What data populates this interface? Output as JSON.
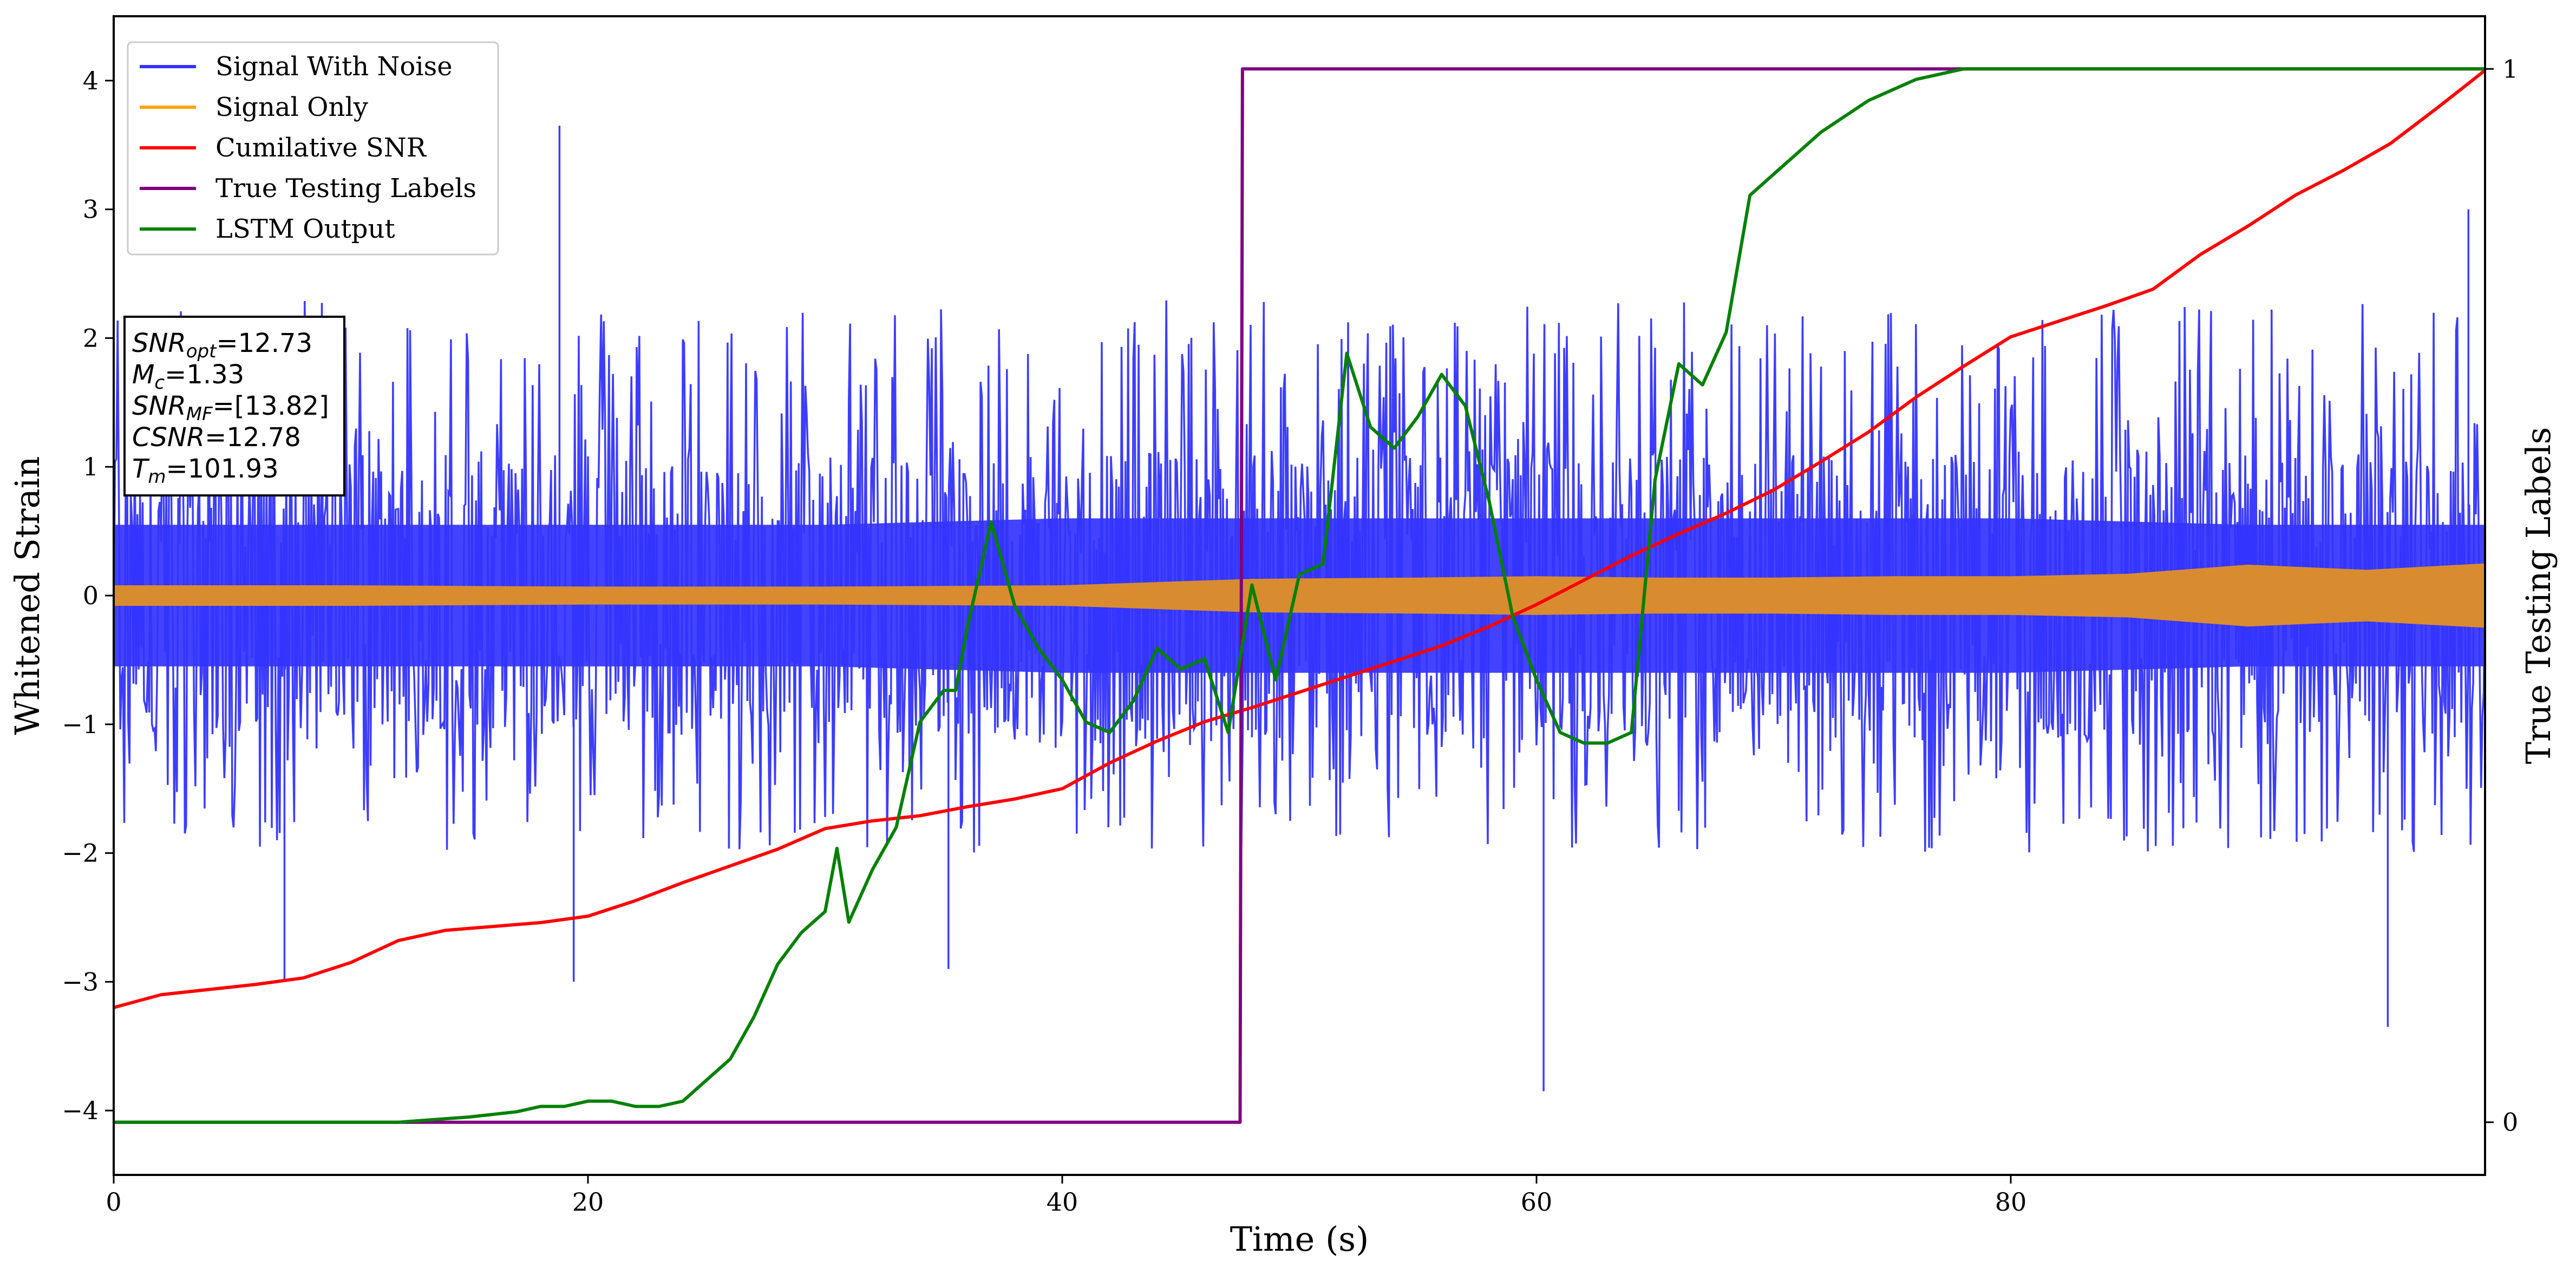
{
  "chart_data": {
    "type": "line",
    "xlabel": "Time (s)",
    "ylabel": "Whitened Strain",
    "y2label": "True Testing Labels",
    "xlim": [
      0,
      100
    ],
    "ylim": [
      -4.5,
      4.5
    ],
    "y2lim": [
      -0.05,
      1.05
    ],
    "xticks": [
      0,
      20,
      40,
      60,
      80
    ],
    "yticks": [
      -4,
      -3,
      -2,
      -1,
      0,
      1,
      2,
      3,
      4
    ],
    "y2ticks": [
      0,
      1
    ],
    "legend_position": "top-left",
    "legend": [
      {
        "label": "Signal With Noise",
        "color": "#3333ff"
      },
      {
        "label": "Signal Only",
        "color": "#ffa500"
      },
      {
        "label": "Cumilative SNR",
        "color": "#ff0000"
      },
      {
        "label": "True Testing Labels",
        "color": "#800080"
      },
      {
        "label": "LSTM Output",
        "color": "#008000"
      }
    ],
    "annotation": [
      {
        "base": "SNR",
        "sub": "opt",
        "rest": "=12.73"
      },
      {
        "base": "M",
        "sub": "c",
        "rest": "=1.33"
      },
      {
        "base": "SNR",
        "sub": "MF",
        "rest": "=[13.82]"
      },
      {
        "base": "CSNR",
        "sub": "",
        "rest": "=12.78"
      },
      {
        "base": "T",
        "sub": "m",
        "rest": "=101.93"
      }
    ],
    "series": [
      {
        "name": "Signal With Noise",
        "axis": "left",
        "color": "#3333ff",
        "style": "noise",
        "band_envelope": {
          "x": [
            0,
            10,
            20,
            30,
            40,
            50,
            60,
            70,
            80,
            90,
            100
          ],
          "upper": [
            0.55,
            0.55,
            0.55,
            0.55,
            0.6,
            0.6,
            0.6,
            0.6,
            0.6,
            0.55,
            0.55
          ],
          "lower": [
            -0.55,
            -0.55,
            -0.55,
            -0.55,
            -0.6,
            -0.6,
            -0.6,
            -0.6,
            -0.6,
            -0.55,
            -0.55
          ]
        },
        "spikes": {
          "typical_range": [
            -2.0,
            2.6
          ],
          "peaks": [
            {
              "x": 18.8,
              "y": 3.65
            },
            {
              "x": 60.3,
              "y": -3.85
            },
            {
              "x": 95.9,
              "y": -3.35
            },
            {
              "x": 99.3,
              "y": 3.0
            },
            {
              "x": 7.2,
              "y": -3.0
            },
            {
              "x": 19.4,
              "y": -3.0
            },
            {
              "x": 35.2,
              "y": -2.9
            }
          ]
        }
      },
      {
        "name": "Signal Only",
        "axis": "left",
        "color": "#d88c2f",
        "style": "band",
        "x": [
          0,
          10,
          20,
          30,
          40,
          48,
          55,
          60,
          65,
          70,
          75,
          80,
          85,
          90,
          95,
          100
        ],
        "amplitude": [
          0.08,
          0.08,
          0.07,
          0.07,
          0.08,
          0.13,
          0.14,
          0.15,
          0.14,
          0.14,
          0.15,
          0.15,
          0.17,
          0.24,
          0.2,
          0.25
        ]
      },
      {
        "name": "Cumilative SNR",
        "axis": "left",
        "color": "#ff0000",
        "x": [
          0,
          2,
          4,
          6,
          8,
          10,
          12,
          14,
          16,
          18,
          20,
          22,
          24,
          26,
          28,
          30,
          32,
          34,
          36,
          38,
          40,
          42,
          44,
          46,
          48,
          50,
          52,
          54,
          56,
          58,
          60,
          62,
          64,
          66,
          68,
          70,
          72,
          74,
          76,
          78,
          80,
          82,
          84,
          86,
          88,
          90,
          92,
          94,
          96,
          98,
          100
        ],
        "y": [
          -3.2,
          -3.1,
          -3.06,
          -3.02,
          -2.97,
          -2.85,
          -2.68,
          -2.6,
          -2.57,
          -2.54,
          -2.49,
          -2.37,
          -2.23,
          -2.1,
          -1.97,
          -1.81,
          -1.75,
          -1.71,
          -1.64,
          -1.58,
          -1.5,
          -1.3,
          -1.13,
          -0.98,
          -0.87,
          -0.75,
          -0.63,
          -0.51,
          -0.39,
          -0.24,
          -0.07,
          0.12,
          0.31,
          0.48,
          0.64,
          0.82,
          1.04,
          1.27,
          1.54,
          1.78,
          2.01,
          2.13,
          2.25,
          2.38,
          2.65,
          2.87,
          3.11,
          3.3,
          3.51,
          3.79,
          4.08
        ]
      },
      {
        "name": "True Testing Labels",
        "axis": "right",
        "color": "#800080",
        "x": [
          0,
          47.5,
          47.6,
          100
        ],
        "y": [
          0,
          0,
          1,
          1
        ]
      },
      {
        "name": "LSTM Output",
        "axis": "right",
        "color": "#008000",
        "x": [
          0,
          12,
          15,
          17,
          18,
          19,
          20,
          21,
          22,
          23,
          24,
          25,
          26,
          27,
          28,
          29,
          30,
          30.5,
          31,
          32,
          33,
          34,
          35,
          35.5,
          36,
          37,
          38,
          39,
          40,
          41,
          42,
          43,
          44,
          45,
          46,
          47,
          48,
          49,
          50,
          51,
          52,
          53,
          54,
          55,
          56,
          57,
          58,
          59,
          60,
          61,
          62,
          63,
          64,
          65,
          66,
          67,
          68,
          69,
          70,
          72,
          74,
          76,
          78,
          80,
          100
        ],
        "y": [
          0,
          0,
          0.005,
          0.01,
          0.015,
          0.015,
          0.02,
          0.02,
          0.015,
          0.015,
          0.02,
          0.04,
          0.06,
          0.1,
          0.15,
          0.18,
          0.2,
          0.26,
          0.19,
          0.24,
          0.28,
          0.38,
          0.41,
          0.41,
          0.47,
          0.57,
          0.49,
          0.45,
          0.42,
          0.38,
          0.37,
          0.4,
          0.45,
          0.43,
          0.44,
          0.37,
          0.51,
          0.42,
          0.52,
          0.53,
          0.73,
          0.66,
          0.64,
          0.67,
          0.71,
          0.68,
          0.59,
          0.48,
          0.42,
          0.37,
          0.36,
          0.36,
          0.37,
          0.61,
          0.72,
          0.7,
          0.75,
          0.88,
          0.9,
          0.94,
          0.97,
          0.99,
          1.0,
          1.0,
          1.0
        ]
      }
    ]
  }
}
